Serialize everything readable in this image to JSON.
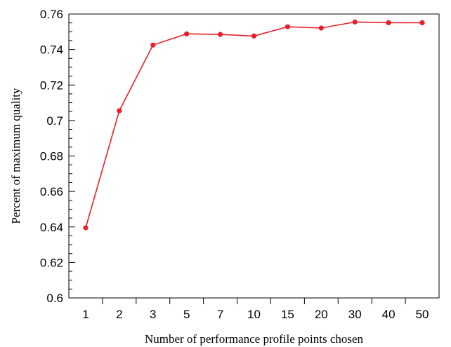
{
  "chart_data": {
    "type": "line",
    "title": "",
    "xlabel": "Number of performance profile points chosen",
    "ylabel": "Percent of maximum quality",
    "categories": [
      "1",
      "2",
      "3",
      "5",
      "7",
      "10",
      "15",
      "20",
      "30",
      "40",
      "50"
    ],
    "series": [
      {
        "name": "",
        "color": "#e8202a",
        "values": [
          0.6395,
          0.7055,
          0.7425,
          0.7488,
          0.7485,
          0.7476,
          0.7528,
          0.7521,
          0.7555,
          0.7551,
          0.7551
        ]
      }
    ],
    "ylim": [
      0.6,
      0.76
    ],
    "yticks": [
      "0.6",
      "0.62",
      "0.64",
      "0.66",
      "0.68",
      "0.7",
      "0.72",
      "0.74",
      "0.76"
    ],
    "grid": false,
    "legend": "none"
  }
}
